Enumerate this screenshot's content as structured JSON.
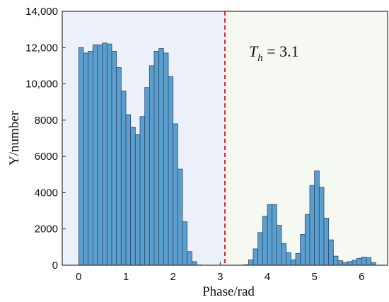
{
  "chart_data": {
    "type": "bar",
    "xlabel": "Phase/rad",
    "ylabel": "Y/number",
    "xlim": [
      -0.35,
      6.55
    ],
    "ylim": [
      0,
      14000
    ],
    "x_ticks": [
      0,
      1,
      2,
      3,
      4,
      5,
      6
    ],
    "x_tick_labels": [
      "0",
      "1",
      "2",
      "3",
      "4",
      "5",
      "6"
    ],
    "y_ticks": [
      0,
      2000,
      4000,
      6000,
      8000,
      10000,
      12000,
      14000
    ],
    "y_tick_labels": [
      "0",
      "2000",
      "4000",
      "6000",
      "8000",
      "10,000",
      "12,000",
      "14,000"
    ],
    "bin_width": 0.1,
    "threshold": {
      "x": 3.1,
      "label_var": "T",
      "label_sub": "h",
      "label_eq": " = 3.1",
      "color": "#e8232a",
      "style": "dashed"
    },
    "regions": [
      {
        "from": -0.35,
        "to": 3.1,
        "color": "#ecf0f9"
      },
      {
        "from": 3.1,
        "to": 6.55,
        "color": "#f6f8f2"
      }
    ],
    "bar_color": "#5b9fcf",
    "bar_edge_color": "#2b4a6b",
    "series": [
      {
        "x": [
          0.05,
          0.15,
          0.25,
          0.35,
          0.45,
          0.55,
          0.65,
          0.75,
          0.85,
          0.95,
          1.05,
          1.15,
          1.25,
          1.35,
          1.45,
          1.55,
          1.65,
          1.75,
          1.85,
          1.95,
          2.05,
          2.15,
          2.25,
          2.35,
          2.45,
          2.55,
          2.65,
          2.75,
          2.85,
          2.95,
          3.05,
          3.15,
          3.25,
          3.35,
          3.45,
          3.55,
          3.65,
          3.75,
          3.85,
          3.95,
          4.05,
          4.15,
          4.25,
          4.35,
          4.45,
          4.55,
          4.65,
          4.75,
          4.85,
          4.95,
          5.05,
          5.15,
          5.25,
          5.35,
          5.45,
          5.55,
          5.65,
          5.75,
          5.85,
          5.95,
          6.05,
          6.15,
          6.25
        ],
        "values": [
          12000,
          11700,
          11800,
          12150,
          12150,
          12250,
          12200,
          11800,
          10900,
          9600,
          8300,
          7600,
          7200,
          8200,
          9800,
          11000,
          11800,
          11950,
          11700,
          10400,
          7800,
          5300,
          2400,
          750,
          200,
          20,
          0,
          0,
          0,
          0,
          0,
          0,
          0,
          0,
          0,
          30,
          300,
          900,
          1800,
          2700,
          3350,
          3350,
          2200,
          1200,
          700,
          300,
          650,
          1700,
          2800,
          4400,
          5200,
          4300,
          2600,
          1400,
          500,
          250,
          150,
          200,
          280,
          380,
          450,
          420,
          150
        ]
      }
    ]
  }
}
